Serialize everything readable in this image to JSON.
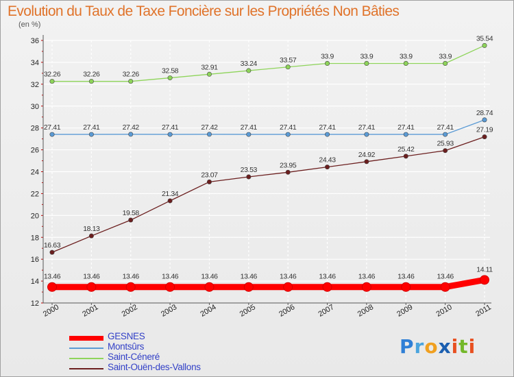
{
  "header": {
    "title": "Evolution du Taux de Taxe Foncière sur les Propriétés Non Bâties",
    "unit": "(en %)"
  },
  "brand": {
    "name": "Proxiti",
    "letters": [
      "P",
      "r",
      "o",
      "x",
      "i",
      "t",
      "i"
    ],
    "colors": [
      "#2f7fd6",
      "#4aa4de",
      "#f0a020",
      "#1b5fb0",
      "#e85020",
      "#74b82a",
      "#e85020"
    ]
  },
  "chart_data": {
    "type": "line",
    "title": "Evolution du Taux de Taxe Foncière sur les Propriétés Non Bâties",
    "ylabel": "(en %)",
    "xlabel": "",
    "ylim": [
      12,
      36
    ],
    "yticks": [
      12,
      14,
      16,
      18,
      20,
      22,
      24,
      26,
      28,
      30,
      32,
      34,
      36
    ],
    "categories": [
      "2000",
      "2001",
      "2002",
      "2003",
      "2004",
      "2005",
      "2006",
      "2007",
      "2008",
      "2009",
      "2010",
      "2011"
    ],
    "grid": true,
    "series": [
      {
        "name": "GESNES",
        "color": "#ff0000",
        "emphasis": true,
        "values": [
          13.46,
          13.46,
          13.46,
          13.46,
          13.46,
          13.46,
          13.46,
          13.46,
          13.46,
          13.46,
          13.46,
          14.11
        ],
        "labels": [
          "13.46",
          "13.46",
          "13.46",
          "13.46",
          "13.46",
          "13.46",
          "13.46",
          "13.46",
          "13.46",
          "13.46",
          "13.46",
          "14.11"
        ]
      },
      {
        "name": "Montsûrs",
        "color": "#5b9bd5",
        "emphasis": false,
        "values": [
          27.41,
          27.41,
          27.42,
          27.41,
          27.42,
          27.41,
          27.41,
          27.41,
          27.41,
          27.41,
          27.41,
          28.74
        ],
        "labels": [
          "27.41",
          "27.41",
          "27.42",
          "27.41",
          "27.42",
          "27.41",
          "27.41",
          "27.41",
          "27.41",
          "27.41",
          "27.41",
          "28.74"
        ]
      },
      {
        "name": "Saint-Céneré",
        "color": "#8ed45a",
        "emphasis": false,
        "values": [
          32.26,
          32.26,
          32.26,
          32.58,
          32.91,
          33.24,
          33.57,
          33.9,
          33.9,
          33.9,
          33.9,
          35.54
        ],
        "labels": [
          "32.26",
          "32.26",
          "32.26",
          "32.58",
          "32.91",
          "33.24",
          "33.57",
          "33.9",
          "33.9",
          "33.9",
          "33.9",
          "35.54"
        ]
      },
      {
        "name": "Saint-Ouën-des-Vallons",
        "color": "#6b1e1e",
        "emphasis": false,
        "values": [
          16.63,
          18.13,
          19.58,
          21.34,
          23.07,
          23.53,
          23.95,
          24.43,
          24.92,
          25.42,
          25.93,
          27.19
        ],
        "labels": [
          "16.63",
          "18.13",
          "19.58",
          "21.34",
          "23.07",
          "23.53",
          "23.95",
          "24.43",
          "24.92",
          "25.42",
          "25.93",
          "27.19"
        ]
      }
    ]
  }
}
